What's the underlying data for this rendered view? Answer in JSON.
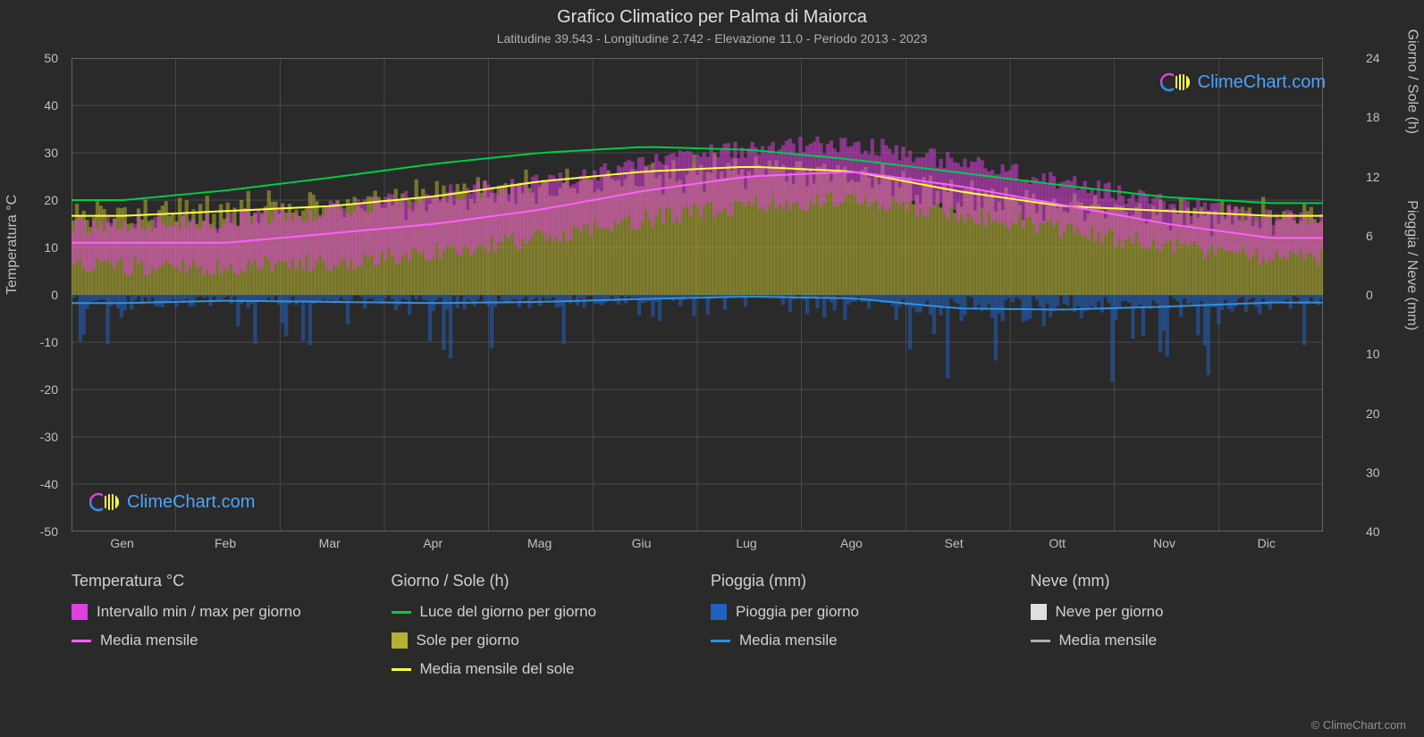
{
  "title": "Grafico Climatico per Palma di Maiorca",
  "subtitle": "Latitudine 39.543 - Longitudine 2.742 - Elevazione 11.0 - Periodo 2013 - 2023",
  "footer": "© ClimeChart.com",
  "logo_text": "ClimeChart.com",
  "chart": {
    "background_color": "#2a2a2a",
    "grid_color": "#555555",
    "text_color": "#c0c0c0",
    "left_axis": {
      "label": "Temperatura °C",
      "min": -50,
      "max": 50,
      "step": 10,
      "ticks": [
        50,
        40,
        30,
        20,
        10,
        0,
        -10,
        -20,
        -30,
        -40,
        -50
      ]
    },
    "right_axis_top": {
      "label": "Giorno / Sole (h)",
      "min": 0,
      "max": 24,
      "step": 6,
      "ticks": [
        24,
        18,
        12,
        6,
        0
      ]
    },
    "right_axis_bottom": {
      "label": "Pioggia / Neve (mm)",
      "min": 0,
      "max": 40,
      "step": 10,
      "ticks": [
        10,
        20,
        30,
        40
      ]
    },
    "months": [
      "Gen",
      "Feb",
      "Mar",
      "Apr",
      "Mag",
      "Giu",
      "Lug",
      "Ago",
      "Set",
      "Ott",
      "Nov",
      "Dic"
    ],
    "series": {
      "temp_range": {
        "color": "#e040e0",
        "opacity": 0.5,
        "min": [
          6,
          6,
          7,
          9,
          12,
          16,
          19,
          20,
          17,
          14,
          10,
          8
        ],
        "max": [
          15,
          16,
          18,
          21,
          24,
          28,
          31,
          32,
          28,
          24,
          19,
          16
        ]
      },
      "temp_mean": {
        "color": "#ff60ff",
        "values": [
          11,
          11,
          13,
          15,
          18,
          22,
          25,
          26,
          23,
          19,
          15,
          12
        ],
        "line_width": 2
      },
      "daylight": {
        "color": "#00cc44",
        "values": [
          9.6,
          10.6,
          11.9,
          13.3,
          14.4,
          15.0,
          14.7,
          13.7,
          12.4,
          11.1,
          9.9,
          9.3
        ],
        "line_width": 2
      },
      "sunshine_fill": {
        "color": "#b5b030",
        "opacity": 0.55,
        "values": [
          8,
          8.5,
          9,
          10,
          11,
          12,
          13,
          12,
          10,
          9,
          8,
          8
        ]
      },
      "sunshine_mean": {
        "color": "#ffff40",
        "values": [
          8,
          8.5,
          9,
          10,
          11.5,
          12.5,
          13,
          12.5,
          10.5,
          9,
          8.5,
          8
        ],
        "line_width": 2
      },
      "rain_daily": {
        "color": "#2060c0",
        "opacity": 0.55,
        "spikes": true
      },
      "rain_mean": {
        "color": "#3090e0",
        "values": [
          1.4,
          1.0,
          1.2,
          1.4,
          1.2,
          0.7,
          0.3,
          0.6,
          2.3,
          2.5,
          2.0,
          1.3
        ],
        "line_width": 2
      },
      "snow_daily": {
        "color": "#e0e0e0"
      },
      "snow_mean": {
        "color": "#b0b0b0",
        "values": [
          0,
          0,
          0,
          0,
          0,
          0,
          0,
          0,
          0,
          0,
          0,
          0
        ]
      }
    }
  },
  "legend": {
    "col1": {
      "head": "Temperatura °C",
      "items": [
        {
          "type": "sq",
          "color": "#e040e0",
          "label": "Intervallo min / max per giorno"
        },
        {
          "type": "line",
          "color": "#ff60ff",
          "label": "Media mensile"
        }
      ]
    },
    "col2": {
      "head": "Giorno / Sole (h)",
      "items": [
        {
          "type": "line",
          "color": "#00cc44",
          "label": "Luce del giorno per giorno"
        },
        {
          "type": "sq",
          "color": "#b5b030",
          "label": "Sole per giorno"
        },
        {
          "type": "line",
          "color": "#ffff40",
          "label": "Media mensile del sole"
        }
      ]
    },
    "col3": {
      "head": "Pioggia (mm)",
      "items": [
        {
          "type": "sq",
          "color": "#2060c0",
          "label": "Pioggia per giorno"
        },
        {
          "type": "line",
          "color": "#3090e0",
          "label": "Media mensile"
        }
      ]
    },
    "col4": {
      "head": "Neve (mm)",
      "items": [
        {
          "type": "sq",
          "color": "#e0e0e0",
          "label": "Neve per giorno"
        },
        {
          "type": "line",
          "color": "#b0b0b0",
          "label": "Media mensile"
        }
      ]
    }
  }
}
